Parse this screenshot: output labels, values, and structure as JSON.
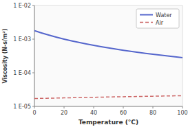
{
  "chart_data": {
    "type": "line",
    "xlabel": "Temperature (°C)",
    "ylabel": "Viscosity (N-s/m²)",
    "x": [
      0,
      2,
      4,
      6,
      8,
      10,
      15,
      20,
      25,
      30,
      35,
      40,
      45,
      50,
      55,
      60,
      65,
      70,
      75,
      80,
      85,
      90,
      95,
      100
    ],
    "series": [
      {
        "name": "Water",
        "color": "#5566cc",
        "line_style": "solid",
        "values": [
          0.001787,
          0.001674,
          0.001567,
          0.001473,
          0.001386,
          0.001307,
          0.001138,
          0.001002,
          0.00089,
          0.000798,
          0.000719,
          0.000653,
          0.000596,
          0.000547,
          0.000504,
          0.000467,
          0.000433,
          0.000404,
          0.000378,
          0.000355,
          0.000334,
          0.000315,
          0.000298,
          0.000282
        ]
      },
      {
        "name": "Air",
        "color": "#cc6666",
        "line_style": "dashed",
        "values": [
          1.716e-05,
          1.722e-05,
          1.728e-05,
          1.735e-05,
          1.741e-05,
          1.754e-05,
          1.773e-05,
          1.792e-05,
          1.811e-05,
          1.83e-05,
          1.849e-05,
          1.867e-05,
          1.886e-05,
          1.904e-05,
          1.922e-05,
          1.94e-05,
          1.958e-05,
          1.976e-05,
          1.993e-05,
          2.011e-05,
          2.028e-05,
          2.045e-05,
          2.062e-05,
          2.079e-05
        ]
      }
    ],
    "xlim": [
      0,
      100
    ],
    "ylim": [
      1e-05,
      0.01
    ],
    "xticks": [
      0,
      20,
      40,
      60,
      80,
      100
    ],
    "yticks": [
      {
        "value": 1e-05,
        "label": "1 E-05"
      },
      {
        "value": 0.0001,
        "label": "1 E-04"
      },
      {
        "value": 0.001,
        "label": "1 E-03"
      },
      {
        "value": 0.01,
        "label": "1 E-02"
      }
    ],
    "log": "y",
    "grid": false,
    "legend": "upper right"
  }
}
